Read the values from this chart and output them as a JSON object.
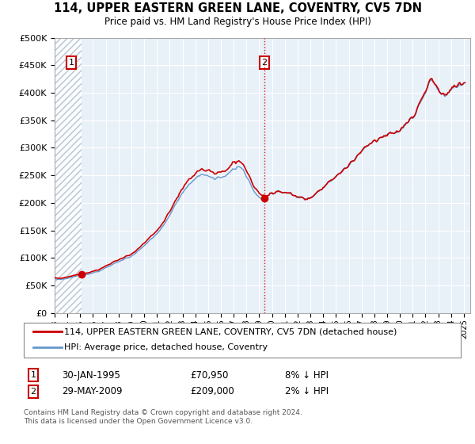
{
  "title": "114, UPPER EASTERN GREEN LANE, COVENTRY, CV5 7DN",
  "subtitle": "Price paid vs. HM Land Registry's House Price Index (HPI)",
  "legend_line1": "114, UPPER EASTERN GREEN LANE, COVENTRY, CV5 7DN (detached house)",
  "legend_line2": "HPI: Average price, detached house, Coventry",
  "sale1_date": "30-JAN-1995",
  "sale1_price": "£70,950",
  "sale1_hpi": "8% ↓ HPI",
  "sale1_year": 1995.08,
  "sale1_value": 70950,
  "sale2_date": "29-MAY-2009",
  "sale2_price": "£209,000",
  "sale2_hpi": "2% ↓ HPI",
  "sale2_year": 2009.41,
  "sale2_value": 209000,
  "footer": "Contains HM Land Registry data © Crown copyright and database right 2024.\nThis data is licensed under the Open Government Licence v3.0.",
  "plot_bg": "#e8f0f8",
  "hatch_color": "#b8c8d8",
  "red_color": "#cc0000",
  "blue_color": "#6699cc",
  "ylim": [
    0,
    500000
  ],
  "xlim": [
    1993,
    2025.5
  ],
  "yticks": [
    0,
    50000,
    100000,
    150000,
    200000,
    250000,
    300000,
    350000,
    400000,
    450000,
    500000
  ]
}
